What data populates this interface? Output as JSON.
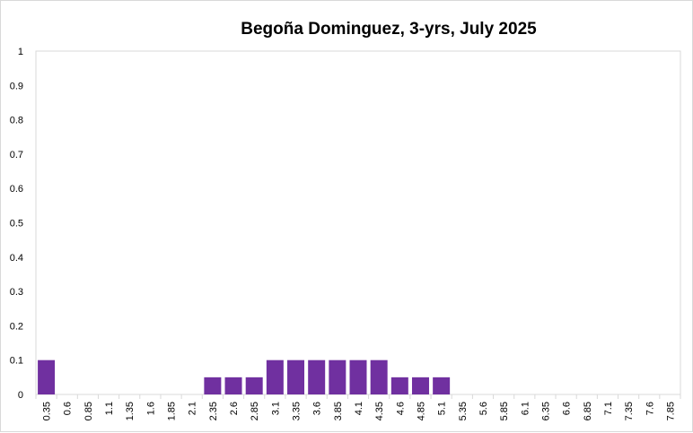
{
  "chart_data": {
    "type": "bar",
    "title": "Begoña Dominguez, 3-yrs, July 2025",
    "xlabel": "",
    "ylabel": "",
    "categories": [
      "0.35",
      "0.6",
      "0.85",
      "1.1",
      "1.35",
      "1.6",
      "1.85",
      "2.1",
      "2.35",
      "2.6",
      "2.85",
      "3.1",
      "3.35",
      "3.6",
      "3.85",
      "4.1",
      "4.35",
      "4.6",
      "4.85",
      "5.1",
      "5.35",
      "5.6",
      "5.85",
      "6.1",
      "6.35",
      "6.6",
      "6.85",
      "7.1",
      "7.35",
      "7.6",
      "7.85"
    ],
    "values": [
      0.1,
      0,
      0,
      0,
      0,
      0,
      0,
      0,
      0.05,
      0.05,
      0.05,
      0.1,
      0.1,
      0.1,
      0.1,
      0.1,
      0.1,
      0.05,
      0.05,
      0.05,
      0,
      0,
      0,
      0,
      0,
      0,
      0,
      0,
      0,
      0,
      0
    ],
    "y_ticks": [
      "0",
      "0.1",
      "0.2",
      "0.3",
      "0.4",
      "0.5",
      "0.6",
      "0.7",
      "0.8",
      "0.9",
      "1"
    ],
    "ylim": [
      0,
      1
    ],
    "grid": false,
    "legend": "none",
    "bar_color": "#7030a0",
    "axis_color": "#d9d9d9"
  }
}
